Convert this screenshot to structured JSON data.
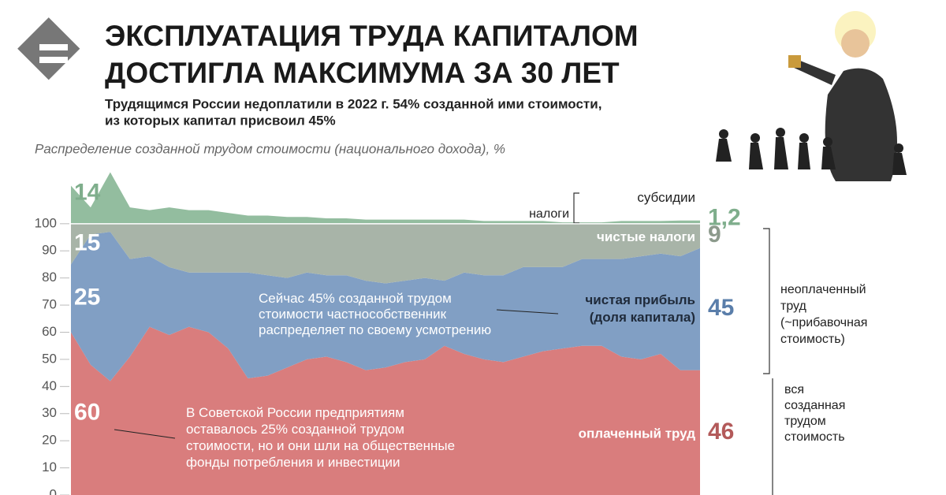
{
  "header": {
    "title_lines": [
      "ЭКСПЛУАТАЦИЯ ТРУДА КАПИТАЛОМ",
      "ДОСТИГЛА МАКСИМУМА ЗА 30 ЛЕТ"
    ],
    "subtitle_lines": [
      "Трудящимся России недоплатили в 2022 г. 54% созданной ими стоимости,",
      "из которых капитал присвоил 45%"
    ]
  },
  "chart_data": {
    "type": "stacked-area",
    "title": "Распределение созданной трудом стоимости (национального дохода), %",
    "categories": [
      null,
      null,
      null,
      null,
      null,
      null,
      null,
      null,
      null,
      null,
      null,
      null,
      null,
      null,
      null,
      null,
      null,
      null,
      null,
      null,
      null,
      null,
      null,
      null,
      null,
      null,
      null,
      null,
      null,
      null,
      null,
      null,
      null
    ],
    "ylim": [
      0,
      120
    ],
    "yticks": [
      0,
      10,
      20,
      30,
      40,
      50,
      60,
      70,
      80,
      90,
      100
    ],
    "series": [
      {
        "name": "оплаченный труд",
        "color": "#d97d7d",
        "label_color": "#b35a5a",
        "values": [
          60,
          48,
          42,
          51,
          62,
          59,
          62,
          60,
          54,
          43,
          44,
          47,
          50,
          51,
          49,
          46,
          47,
          49,
          50,
          55,
          52,
          50,
          49,
          51,
          53,
          54,
          55,
          55,
          51,
          50,
          52,
          46,
          46
        ]
      },
      {
        "name": "чистая прибыль\n(доля капитала)",
        "color": "#819fc4",
        "label_color": "#5a7eaa",
        "values": [
          25,
          48,
          55,
          36,
          26,
          25,
          20,
          22,
          28,
          39,
          37,
          33,
          32,
          30,
          32,
          33,
          31,
          30,
          30,
          24,
          30,
          31,
          32,
          33,
          31,
          30,
          32,
          32,
          36,
          38,
          37,
          42,
          45
        ]
      },
      {
        "name": "чистые налоги",
        "color": "#a8b4a8",
        "label_color": "#8c9a8c",
        "values": [
          15,
          4,
          3,
          13,
          12,
          16,
          18,
          18,
          18,
          18,
          19,
          20,
          18,
          19,
          19,
          21,
          22,
          21,
          20,
          21,
          18,
          19,
          19,
          16,
          16,
          16,
          13,
          13,
          13,
          12,
          11,
          12,
          9
        ]
      },
      {
        "name": "субсидии",
        "color": "#93bd9f",
        "label_color": "#7fae8c",
        "values": [
          14,
          6,
          19,
          6,
          5,
          6,
          5,
          5,
          4,
          3,
          3,
          2.5,
          2.5,
          2,
          2,
          1.5,
          1.5,
          1.5,
          1.5,
          1.5,
          1.5,
          1,
          1,
          1,
          1,
          0.5,
          0.5,
          0.5,
          1,
          1,
          1,
          1.2,
          1.2
        ],
        "value_labels": [
          "14",
          null,
          null,
          null,
          null,
          null,
          null,
          null,
          null,
          null,
          null,
          null,
          null,
          null,
          null,
          null,
          null,
          null,
          null,
          null,
          null,
          null,
          null,
          null,
          null,
          null,
          null,
          null,
          null,
          null,
          null,
          null,
          "1,2"
        ]
      }
    ],
    "annotations": [
      "налоги",
      "Сейчас 45% созданной трудом\nстоимости частнособственник\nраспределяет по своему усмотрению",
      "В Советской России предприятиям\nоставалось 25% созданной трудом\nстоимости, но и они шли на общественные\nфонды потребления и инвестиции",
      "неоплаченный\nтруд\n(~прибавочная\nстоимость)",
      "вся\nсозданная\nтрудом\nстоимость"
    ]
  }
}
